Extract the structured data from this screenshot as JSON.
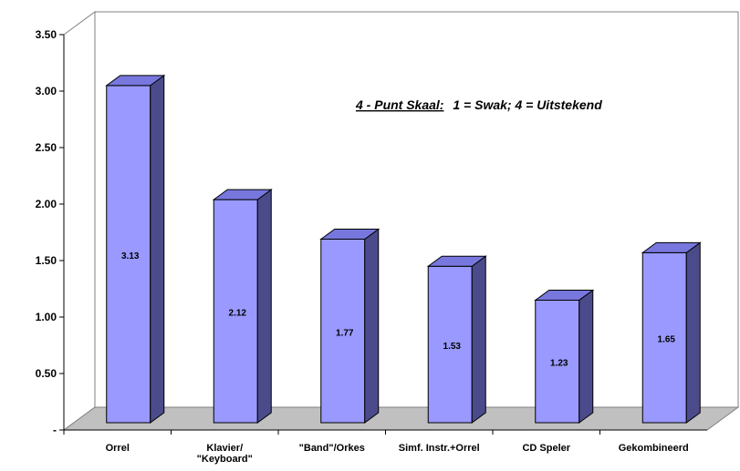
{
  "chart_data": {
    "type": "bar",
    "title": "",
    "xlabel": "",
    "ylabel": "",
    "categories": [
      [
        "Orrel"
      ],
      [
        "Klavier/",
        "\"Keyboard\""
      ],
      [
        "\"Band\"/Orkes"
      ],
      [
        "Simf. Instr.+Orrel"
      ],
      [
        "CD Speler"
      ],
      [
        "Gekombineerd"
      ]
    ],
    "values": [
      3.13,
      2.12,
      1.77,
      1.53,
      1.23,
      1.65
    ],
    "data_labels": [
      "3.13",
      "2.12",
      "1.77",
      "1.53",
      "1.23",
      "1.65"
    ],
    "ylim": [
      0,
      3.5
    ],
    "yticks": [
      0,
      0.5,
      1.0,
      1.5,
      2.0,
      2.5,
      3.0,
      3.5
    ],
    "ytick_labels": [
      "-",
      "0.50",
      "1.00",
      "1.50",
      "2.00",
      "2.50",
      "3.00",
      "3.50"
    ],
    "annotation": {
      "underlined": "4 - Punt Skaal:",
      "rest": "1 = Swak; 4 = Uitstekend"
    },
    "grid": false,
    "legend": "none",
    "style": "3d",
    "colors": {
      "bar_front": "#9999ff",
      "bar_side": "#4b4b8c",
      "bar_top": "#7777dd",
      "floor": "#c0c0c0",
      "edge": "#000000"
    }
  }
}
